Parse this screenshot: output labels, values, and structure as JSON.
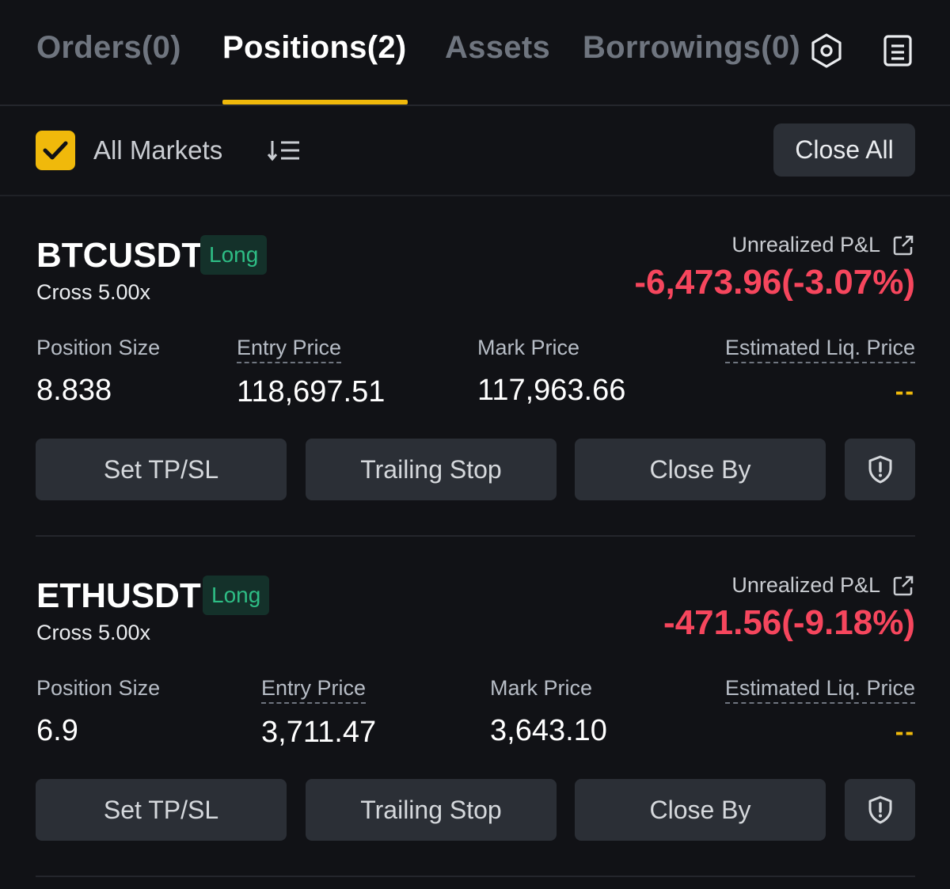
{
  "tabs": [
    {
      "label": "Orders(0)"
    },
    {
      "label": "Positions(2)"
    },
    {
      "label": "Assets"
    },
    {
      "label": "Borrowings(0)"
    }
  ],
  "filter": {
    "all_markets_label": "All Markets",
    "all_markets_checked": true,
    "close_all_label": "Close All"
  },
  "colors": {
    "accent": "#f0b90b",
    "loss": "#f6465d",
    "long": "#2ebd85",
    "background": "#111216",
    "button": "#2b2f36"
  },
  "icons": {
    "settings": "hexagon-settings-icon",
    "orderbook": "document-icon",
    "sort": "sort-list-icon",
    "external": "external-link-icon",
    "shield": "shield-alert-icon"
  },
  "positions": [
    {
      "symbol": "BTCUSDT",
      "side": "Long",
      "margin_mode": "Cross 5.00x",
      "pnl_label": "Unrealized P&L",
      "pnl_value": "-6,473.96(-3.07%)",
      "size_label": "Position Size",
      "size_value": "8.838",
      "entry_label": "Entry Price",
      "entry_value": "118,697.51",
      "mark_label": "Mark Price",
      "mark_value": "117,963.66",
      "liq_label": "Estimated Liq. Price",
      "liq_value": "--",
      "btn_tpsl": "Set TP/SL",
      "btn_trailing": "Trailing Stop",
      "btn_closeby": "Close By"
    },
    {
      "symbol": "ETHUSDT",
      "side": "Long",
      "margin_mode": "Cross 5.00x",
      "pnl_label": "Unrealized P&L",
      "pnl_value": "-471.56(-9.18%)",
      "size_label": "Position Size",
      "size_value": "6.9",
      "entry_label": "Entry Price",
      "entry_value": "3,711.47",
      "mark_label": "Mark Price",
      "mark_value": "3,643.10",
      "liq_label": "Estimated Liq. Price",
      "liq_value": "--",
      "btn_tpsl": "Set TP/SL",
      "btn_trailing": "Trailing Stop",
      "btn_closeby": "Close By"
    }
  ]
}
